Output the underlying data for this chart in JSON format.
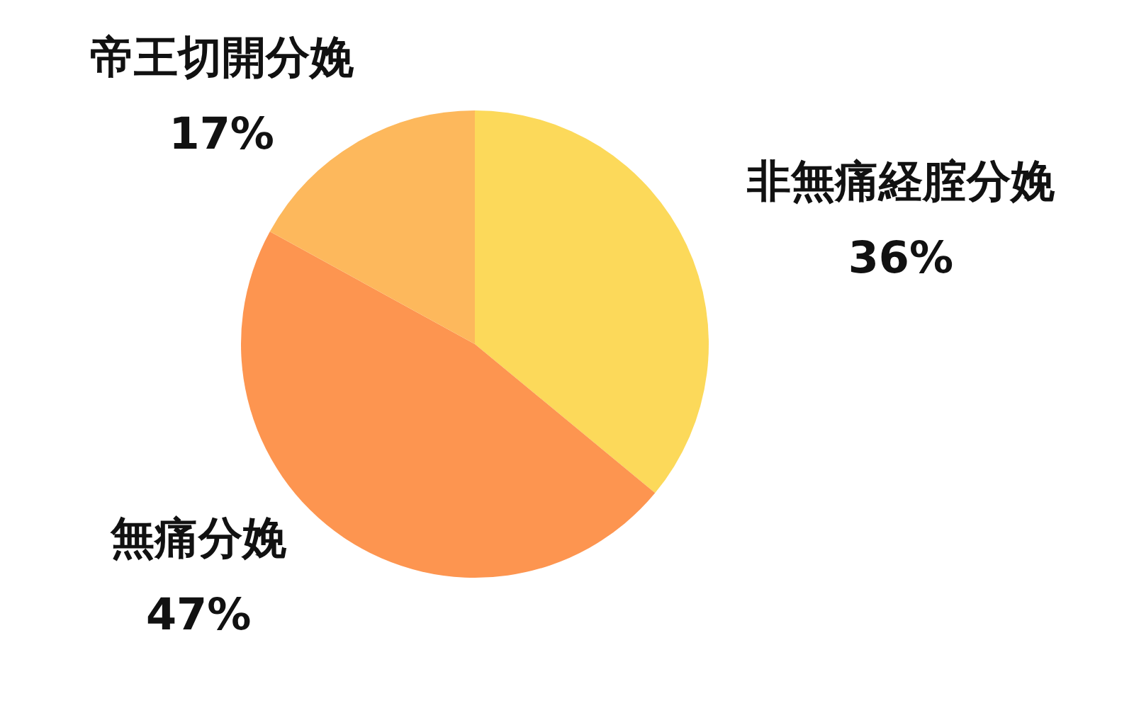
{
  "chart_data": {
    "type": "pie",
    "categories": [
      "非無痛経腟分娩",
      "無痛分娩",
      "帝王切開分娩"
    ],
    "values": [
      36,
      47,
      17
    ],
    "colors": [
      "#fcd95a",
      "#fd9550",
      "#fdb85c"
    ],
    "value_labels": [
      "36%",
      "47%",
      "17%"
    ]
  }
}
